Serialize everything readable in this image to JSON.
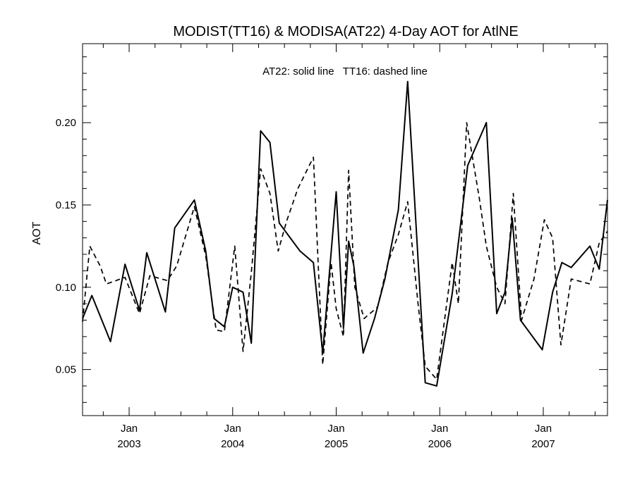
{
  "chart_data": {
    "type": "line",
    "title": "MODIST(TT16) & MODISA(AT22) 4-Day AOT for AtlNE",
    "annotation": "AT22: solid line   TT16: dashed line",
    "ylabel": "AOT",
    "xlabel": "",
    "xlim": [
      2002.55,
      2007.62
    ],
    "ylim": [
      0.022,
      0.248
    ],
    "grid": false,
    "y_ticks": [
      "0.05",
      "0.10",
      "0.15",
      "0.20"
    ],
    "y_tick_values": [
      0.05,
      0.1,
      0.15,
      0.2
    ],
    "x_ticks": [
      {
        "value": 2003.0,
        "month": "Jan",
        "year": "2003"
      },
      {
        "value": 2004.0,
        "month": "Jan",
        "year": "2004"
      },
      {
        "value": 2005.0,
        "month": "Jan",
        "year": "2005"
      },
      {
        "value": 2006.0,
        "month": "Jan",
        "year": "2006"
      },
      {
        "value": 2007.0,
        "month": "Jan",
        "year": "2007"
      }
    ],
    "series": [
      {
        "name": "AT22",
        "style": "solid",
        "color": "#000000",
        "points": [
          [
            2002.55,
            0.081
          ],
          [
            2002.64,
            0.095
          ],
          [
            2002.82,
            0.067
          ],
          [
            2002.96,
            0.114
          ],
          [
            2003.1,
            0.086
          ],
          [
            2003.17,
            0.121
          ],
          [
            2003.35,
            0.085
          ],
          [
            2003.44,
            0.136
          ],
          [
            2003.63,
            0.153
          ],
          [
            2003.74,
            0.122
          ],
          [
            2003.82,
            0.081
          ],
          [
            2003.92,
            0.076
          ],
          [
            2004.0,
            0.1
          ],
          [
            2004.1,
            0.097
          ],
          [
            2004.18,
            0.066
          ],
          [
            2004.27,
            0.195
          ],
          [
            2004.36,
            0.188
          ],
          [
            2004.45,
            0.139
          ],
          [
            2004.65,
            0.122
          ],
          [
            2004.78,
            0.115
          ],
          [
            2004.87,
            0.06
          ],
          [
            2005.0,
            0.158
          ],
          [
            2005.07,
            0.075
          ],
          [
            2005.12,
            0.128
          ],
          [
            2005.17,
            0.113
          ],
          [
            2005.26,
            0.06
          ],
          [
            2005.37,
            0.081
          ],
          [
            2005.47,
            0.105
          ],
          [
            2005.6,
            0.147
          ],
          [
            2005.69,
            0.225
          ],
          [
            2005.86,
            0.042
          ],
          [
            2005.97,
            0.04
          ],
          [
            2006.12,
            0.096
          ],
          [
            2006.27,
            0.174
          ],
          [
            2006.45,
            0.2
          ],
          [
            2006.55,
            0.084
          ],
          [
            2006.63,
            0.097
          ],
          [
            2006.7,
            0.142
          ],
          [
            2006.78,
            0.08
          ],
          [
            2006.99,
            0.062
          ],
          [
            2007.09,
            0.097
          ],
          [
            2007.18,
            0.115
          ],
          [
            2007.27,
            0.112
          ],
          [
            2007.45,
            0.125
          ],
          [
            2007.54,
            0.111
          ],
          [
            2007.62,
            0.153
          ]
        ]
      },
      {
        "name": "TT16",
        "style": "dashed",
        "color": "#000000",
        "points": [
          [
            2002.55,
            0.079
          ],
          [
            2002.62,
            0.125
          ],
          [
            2002.72,
            0.113
          ],
          [
            2002.78,
            0.102
          ],
          [
            2002.96,
            0.106
          ],
          [
            2003.1,
            0.084
          ],
          [
            2003.2,
            0.107
          ],
          [
            2003.37,
            0.104
          ],
          [
            2003.46,
            0.113
          ],
          [
            2003.63,
            0.149
          ],
          [
            2003.74,
            0.119
          ],
          [
            2003.84,
            0.074
          ],
          [
            2003.92,
            0.073
          ],
          [
            2004.02,
            0.125
          ],
          [
            2004.1,
            0.061
          ],
          [
            2004.18,
            0.109
          ],
          [
            2004.27,
            0.172
          ],
          [
            2004.36,
            0.157
          ],
          [
            2004.44,
            0.122
          ],
          [
            2004.52,
            0.14
          ],
          [
            2004.63,
            0.16
          ],
          [
            2004.78,
            0.179
          ],
          [
            2004.87,
            0.053
          ],
          [
            2004.95,
            0.115
          ],
          [
            2005.0,
            0.087
          ],
          [
            2005.07,
            0.07
          ],
          [
            2005.12,
            0.171
          ],
          [
            2005.18,
            0.1
          ],
          [
            2005.27,
            0.081
          ],
          [
            2005.4,
            0.088
          ],
          [
            2005.5,
            0.115
          ],
          [
            2005.6,
            0.132
          ],
          [
            2005.69,
            0.152
          ],
          [
            2005.79,
            0.09
          ],
          [
            2005.86,
            0.052
          ],
          [
            2005.97,
            0.044
          ],
          [
            2006.12,
            0.115
          ],
          [
            2006.18,
            0.09
          ],
          [
            2006.26,
            0.2
          ],
          [
            2006.38,
            0.155
          ],
          [
            2006.45,
            0.125
          ],
          [
            2006.55,
            0.1
          ],
          [
            2006.63,
            0.09
          ],
          [
            2006.71,
            0.157
          ],
          [
            2006.79,
            0.08
          ],
          [
            2006.91,
            0.105
          ],
          [
            2007.01,
            0.141
          ],
          [
            2007.09,
            0.13
          ],
          [
            2007.17,
            0.065
          ],
          [
            2007.27,
            0.105
          ],
          [
            2007.45,
            0.102
          ],
          [
            2007.54,
            0.127
          ],
          [
            2007.62,
            0.134
          ]
        ]
      }
    ]
  }
}
